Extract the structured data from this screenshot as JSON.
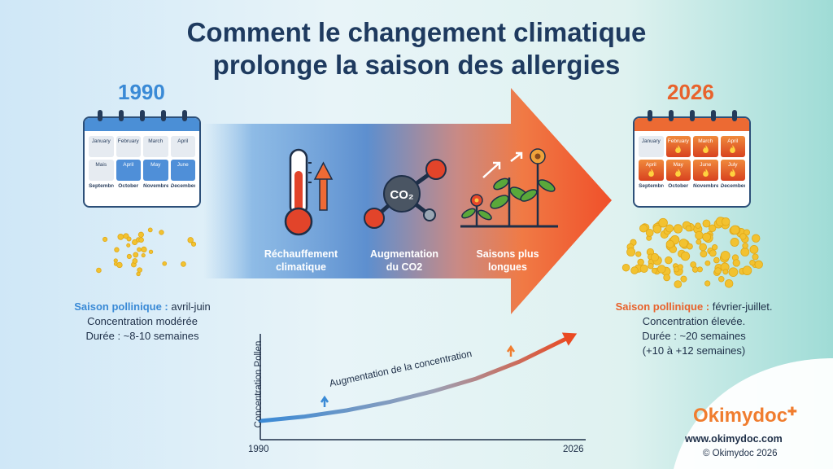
{
  "title": {
    "line1": "Comment le changement climatique",
    "line2": "prolonge la saison des allergies"
  },
  "left": {
    "year": "1990",
    "months": [
      "January",
      "February",
      "March",
      "April",
      "Mais",
      "April",
      "May",
      "June",
      "Septembre",
      "October",
      "Novembre",
      "December"
    ],
    "highlighted_months": [
      5,
      6,
      7
    ],
    "info_highlight": "Saison pollinique :",
    "info_season": "avril-juin",
    "info_line2": "Concentration modérée",
    "info_line3": "Durée : ~8-10 semaines"
  },
  "right": {
    "year": "2026",
    "months": [
      "January",
      "February",
      "March",
      "April",
      "April",
      "May",
      "June",
      "July",
      "Septembre",
      "October",
      "Novembre",
      "December"
    ],
    "highlighted_months": [
      1,
      2,
      3,
      4,
      5,
      6,
      7
    ],
    "info_highlight": "Saison pollinique :",
    "info_season": "février-juillet.",
    "info_line2": "Concentration élevée.",
    "info_line3": "Durée : ~20 semaines",
    "info_line4": "(+10 à +12 semaines)"
  },
  "factors": [
    {
      "icon": "thermometer-icon",
      "line1": "Réchauffement",
      "line2": "climatique"
    },
    {
      "icon": "co2-molecule-icon",
      "line1": "Augmentation",
      "line2": "du CO2",
      "symbol": "CO₂"
    },
    {
      "icon": "plants-icon",
      "line1": "Saisons plus",
      "line2": "longues"
    }
  ],
  "chart_data": {
    "type": "line",
    "ylabel": "Concentration Pollen",
    "xlabel": "",
    "x_ticks": [
      "1990",
      "2026"
    ],
    "annotation": "Augmentation de la concentration",
    "series": [
      {
        "x": [
          1990,
          1995,
          2000,
          2005,
          2010,
          2015,
          2020,
          2026
        ],
        "y": [
          1.0,
          1.4,
          2.0,
          2.8,
          3.8,
          5.0,
          6.6,
          9.0
        ]
      }
    ],
    "ylim": [
      0,
      10
    ],
    "grid": false
  },
  "brand": {
    "name": "Okimydoc",
    "url": "www.okimydoc.com",
    "copyright": "© Okimydoc 2026"
  },
  "colors": {
    "cold": "#3a8ad6",
    "warm": "#e8622c",
    "navy": "#1e3a5f"
  }
}
